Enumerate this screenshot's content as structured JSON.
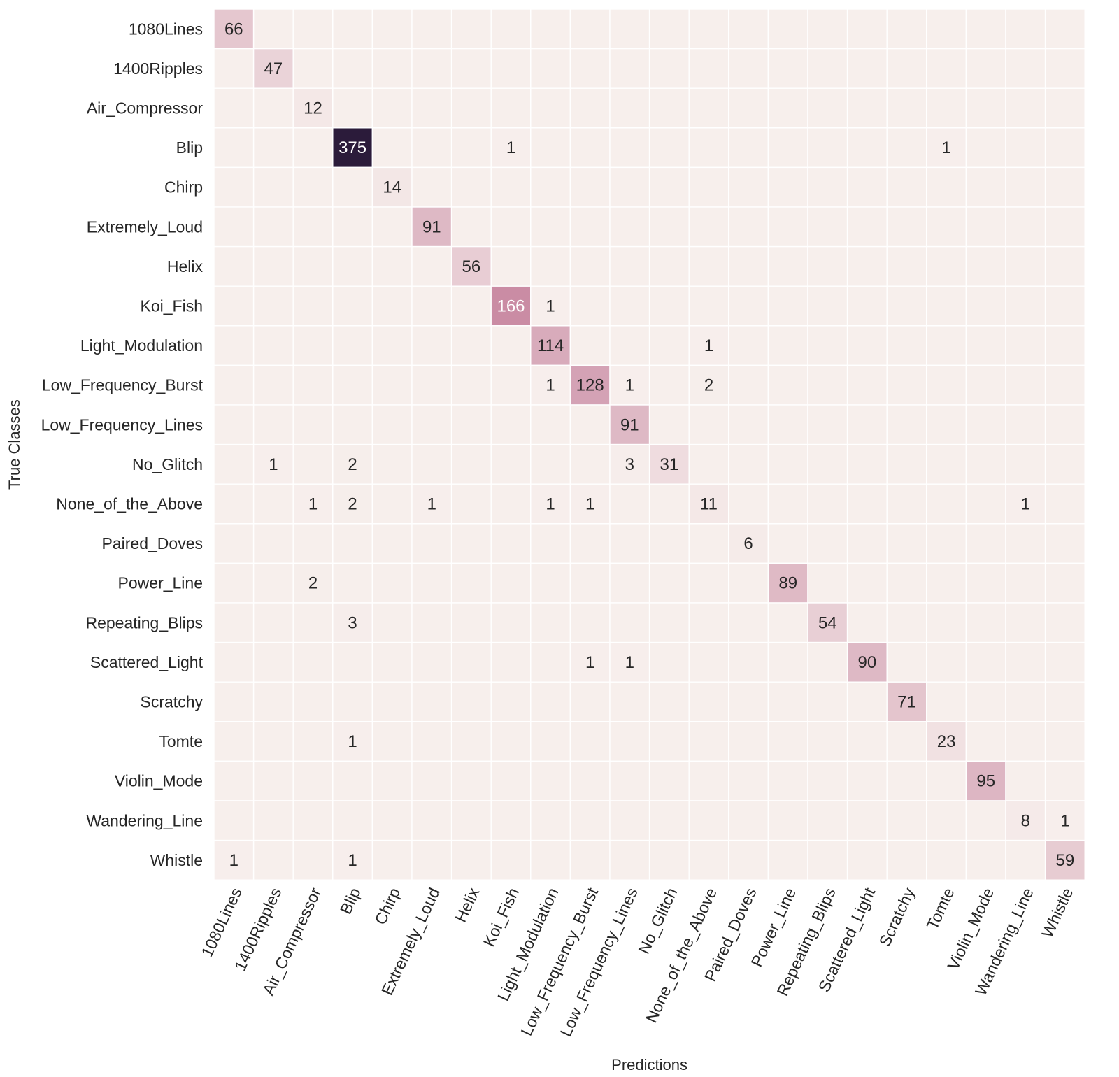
{
  "chart_data": {
    "type": "heatmap",
    "title": "",
    "xlabel": "Predictions",
    "ylabel": "True Classes",
    "grid": true,
    "legend": "none",
    "colors": {
      "low": "#f7efec",
      "mid": "#c98aa3",
      "high": "#2b1b3a",
      "gridline": "#ffffff",
      "text_dark": "#262626",
      "text_light": "#ffffff"
    },
    "value_range": [
      0,
      375
    ],
    "row_labels": [
      "1080Lines",
      "1400Ripples",
      "Air_Compressor",
      "Blip",
      "Chirp",
      "Extremely_Loud",
      "Helix",
      "Koi_Fish",
      "Light_Modulation",
      "Low_Frequency_Burst",
      "Low_Frequency_Lines",
      "No_Glitch",
      "None_of_the_Above",
      "Paired_Doves",
      "Power_Line",
      "Repeating_Blips",
      "Scattered_Light",
      "Scratchy",
      "Tomte",
      "Violin_Mode",
      "Wandering_Line",
      "Whistle"
    ],
    "col_labels": [
      "1080Lines",
      "1400Ripples",
      "Air_Compressor",
      "Blip",
      "Chirp",
      "Extremely_Loud",
      "Helix",
      "Koi_Fish",
      "Light_Modulation",
      "Low_Frequency_Burst",
      "Low_Frequency_Lines",
      "No_Glitch",
      "None_of_the_Above",
      "Paired_Doves",
      "Power_Line",
      "Repeating_Blips",
      "Scattered_Light",
      "Scratchy",
      "Tomte",
      "Violin_Mode",
      "Wandering_Line",
      "Whistle"
    ],
    "matrix": [
      [
        66,
        0,
        0,
        0,
        0,
        0,
        0,
        0,
        0,
        0,
        0,
        0,
        0,
        0,
        0,
        0,
        0,
        0,
        0,
        0,
        0,
        0
      ],
      [
        0,
        47,
        0,
        0,
        0,
        0,
        0,
        0,
        0,
        0,
        0,
        0,
        0,
        0,
        0,
        0,
        0,
        0,
        0,
        0,
        0,
        0
      ],
      [
        0,
        0,
        12,
        0,
        0,
        0,
        0,
        0,
        0,
        0,
        0,
        0,
        0,
        0,
        0,
        0,
        0,
        0,
        0,
        0,
        0,
        0
      ],
      [
        0,
        0,
        0,
        375,
        0,
        0,
        0,
        1,
        0,
        0,
        0,
        0,
        0,
        0,
        0,
        0,
        0,
        0,
        1,
        0,
        0,
        0
      ],
      [
        0,
        0,
        0,
        0,
        14,
        0,
        0,
        0,
        0,
        0,
        0,
        0,
        0,
        0,
        0,
        0,
        0,
        0,
        0,
        0,
        0,
        0
      ],
      [
        0,
        0,
        0,
        0,
        0,
        91,
        0,
        0,
        0,
        0,
        0,
        0,
        0,
        0,
        0,
        0,
        0,
        0,
        0,
        0,
        0,
        0
      ],
      [
        0,
        0,
        0,
        0,
        0,
        0,
        56,
        0,
        0,
        0,
        0,
        0,
        0,
        0,
        0,
        0,
        0,
        0,
        0,
        0,
        0,
        0
      ],
      [
        0,
        0,
        0,
        0,
        0,
        0,
        0,
        166,
        1,
        0,
        0,
        0,
        0,
        0,
        0,
        0,
        0,
        0,
        0,
        0,
        0,
        0
      ],
      [
        0,
        0,
        0,
        0,
        0,
        0,
        0,
        0,
        114,
        0,
        0,
        0,
        1,
        0,
        0,
        0,
        0,
        0,
        0,
        0,
        0,
        0
      ],
      [
        0,
        0,
        0,
        0,
        0,
        0,
        0,
        0,
        1,
        128,
        1,
        0,
        2,
        0,
        0,
        0,
        0,
        0,
        0,
        0,
        0,
        0
      ],
      [
        0,
        0,
        0,
        0,
        0,
        0,
        0,
        0,
        0,
        0,
        91,
        0,
        0,
        0,
        0,
        0,
        0,
        0,
        0,
        0,
        0,
        0
      ],
      [
        0,
        1,
        0,
        2,
        0,
        0,
        0,
        0,
        0,
        0,
        3,
        31,
        0,
        0,
        0,
        0,
        0,
        0,
        0,
        0,
        0,
        0
      ],
      [
        0,
        0,
        1,
        2,
        0,
        1,
        0,
        0,
        1,
        1,
        0,
        0,
        11,
        0,
        0,
        0,
        0,
        0,
        0,
        0,
        1,
        0
      ],
      [
        0,
        0,
        0,
        0,
        0,
        0,
        0,
        0,
        0,
        0,
        0,
        0,
        0,
        6,
        0,
        0,
        0,
        0,
        0,
        0,
        0,
        0
      ],
      [
        0,
        0,
        2,
        0,
        0,
        0,
        0,
        0,
        0,
        0,
        0,
        0,
        0,
        0,
        89,
        0,
        0,
        0,
        0,
        0,
        0,
        0
      ],
      [
        0,
        0,
        0,
        3,
        0,
        0,
        0,
        0,
        0,
        0,
        0,
        0,
        0,
        0,
        0,
        54,
        0,
        0,
        0,
        0,
        0,
        0
      ],
      [
        0,
        0,
        0,
        0,
        0,
        0,
        0,
        0,
        0,
        1,
        1,
        0,
        0,
        0,
        0,
        0,
        90,
        0,
        0,
        0,
        0,
        0
      ],
      [
        0,
        0,
        0,
        0,
        0,
        0,
        0,
        0,
        0,
        0,
        0,
        0,
        0,
        0,
        0,
        0,
        0,
        71,
        0,
        0,
        0,
        0
      ],
      [
        0,
        0,
        0,
        1,
        0,
        0,
        0,
        0,
        0,
        0,
        0,
        0,
        0,
        0,
        0,
        0,
        0,
        0,
        23,
        0,
        0,
        0
      ],
      [
        0,
        0,
        0,
        0,
        0,
        0,
        0,
        0,
        0,
        0,
        0,
        0,
        0,
        0,
        0,
        0,
        0,
        0,
        0,
        95,
        0,
        0
      ],
      [
        0,
        0,
        0,
        0,
        0,
        0,
        0,
        0,
        0,
        0,
        0,
        0,
        0,
        0,
        0,
        0,
        0,
        0,
        0,
        0,
        8,
        1
      ],
      [
        1,
        0,
        0,
        1,
        0,
        0,
        0,
        0,
        0,
        0,
        0,
        0,
        0,
        0,
        0,
        0,
        0,
        0,
        0,
        0,
        0,
        59
      ]
    ],
    "zero_values_hidden": true
  }
}
